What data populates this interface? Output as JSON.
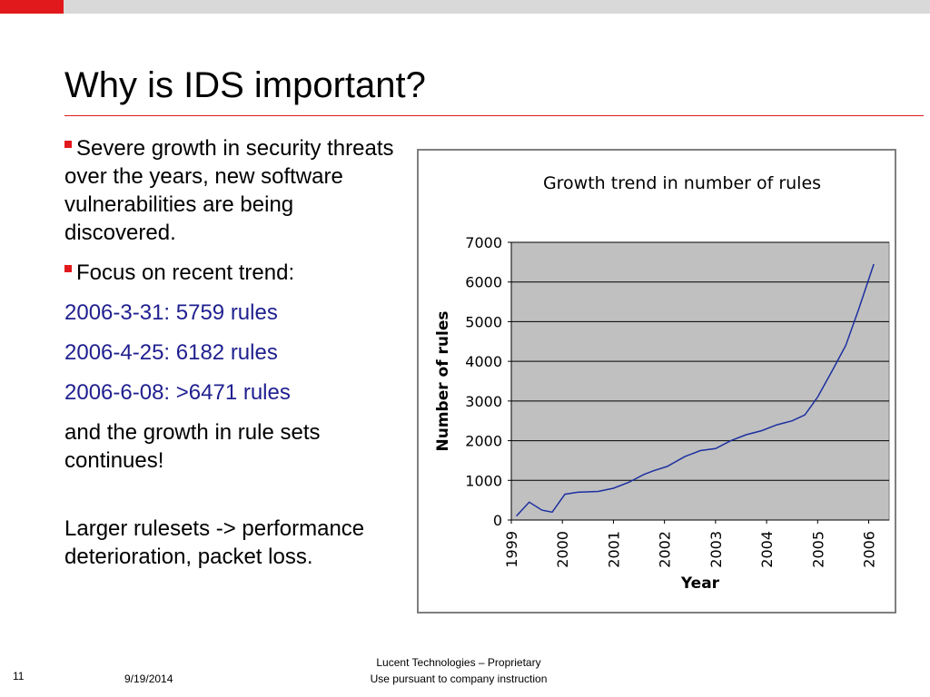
{
  "slide": {
    "title": "Why is IDS important?",
    "bullets": [
      "Severe growth in security threats over the years, new software vulnerabilities are being discovered.",
      "Focus on recent trend:"
    ],
    "trend_lines": [
      "2006-3-31: 5759 rules",
      "2006-4-25: 6182 rules",
      "2006-6-08: >6471 rules"
    ],
    "continuation": "and the growth in rule sets continues!",
    "conclusion": "Larger rulesets -> performance deterioration, packet loss."
  },
  "footer": {
    "page_number": "11",
    "date": "9/19/2014",
    "company_line1": "Lucent Technologies – Proprietary",
    "company_line2": "Use pursuant to company instruction"
  },
  "colors": {
    "accent_red": "#e2191c",
    "plot_background": "#c0c0c0",
    "series_line": "#1c2fa0",
    "trend_text": "#1f1f8f"
  },
  "chart_data": {
    "type": "line",
    "title": "Growth trend in number of rules",
    "xlabel": "Year",
    "ylabel": "Number of rules",
    "xlim": [
      1999,
      2006.4
    ],
    "ylim": [
      0,
      7000
    ],
    "yticks": [
      0,
      1000,
      2000,
      3000,
      4000,
      5000,
      6000,
      7000
    ],
    "xticks": [
      "1999",
      "2000",
      "2001",
      "2002",
      "2003",
      "2004",
      "2005",
      "2006"
    ],
    "grid": true,
    "series": [
      {
        "x": [
          1999.1,
          1999.35,
          1999.6,
          1999.8,
          2000.05,
          2000.3,
          2000.7,
          2001.0,
          2001.3,
          2001.6,
          2001.8,
          2002.05,
          2002.4,
          2002.7,
          2003.0,
          2003.3,
          2003.6,
          2003.9,
          2004.2,
          2004.5,
          2004.75,
          2005.0,
          2005.3,
          2005.55,
          2005.8,
          2006.1
        ],
        "y": [
          100,
          450,
          250,
          200,
          650,
          700,
          720,
          800,
          950,
          1150,
          1250,
          1350,
          1600,
          1750,
          1800,
          2000,
          2150,
          2250,
          2400,
          2500,
          2650,
          3100,
          3800,
          4400,
          5300,
          6450
        ]
      }
    ]
  }
}
